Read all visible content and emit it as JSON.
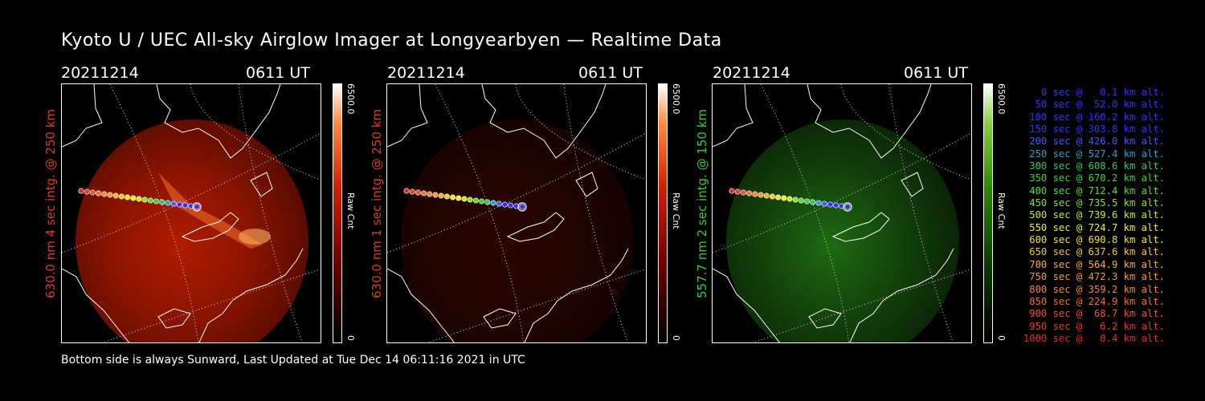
{
  "title": "Kyoto U / UEC All-sky Airglow Imager at Longyearbyen — Realtime Data",
  "footer": "Bottom side is always Sunward, Last Updated at Tue Dec 14 06:11:16 2021 in UTC",
  "panels": [
    {
      "date": "20211214",
      "time": "0611 UT",
      "ylabel": "630.0 nm 4 sec intg. @ 250 km",
      "label_color": "#e03a1e",
      "cbar_max": "6500.0",
      "cbar_min": "0",
      "cbar_unit": "Raw Cnt",
      "colormap": "red",
      "brightness": "high"
    },
    {
      "date": "20211214",
      "time": "0611 UT",
      "ylabel": "630.0 nm 1 sec intg. @ 250 km",
      "label_color": "#e03a1e",
      "cbar_max": "6500.0",
      "cbar_min": "0",
      "cbar_unit": "Raw Cnt",
      "colormap": "red",
      "brightness": "low"
    },
    {
      "date": "20211214",
      "time": "0611 UT",
      "ylabel": "557.7 nm 2 sec intg. @ 150 km",
      "label_color": "#33cc33",
      "cbar_max": "6500.0",
      "cbar_min": "0",
      "cbar_unit": "Raw Cnt",
      "colormap": "green",
      "brightness": "medium"
    }
  ],
  "legend": [
    {
      "text": "0 sec @   0.1 km alt.",
      "color": "#3a2cff"
    },
    {
      "text": "50 sec @  52.0 km alt.",
      "color": "#3a2cff"
    },
    {
      "text": "100 sec @ 160.2 km alt.",
      "color": "#3a2cff"
    },
    {
      "text": "150 sec @ 303.8 km alt.",
      "color": "#3a2cff"
    },
    {
      "text": "200 sec @ 426.0 km alt.",
      "color": "#3a5cff"
    },
    {
      "text": "250 sec @ 527.4 km alt.",
      "color": "#2aa0c8"
    },
    {
      "text": "300 sec @ 608.6 km alt.",
      "color": "#2ec86a"
    },
    {
      "text": "350 sec @ 670.2 km alt.",
      "color": "#3cd23c"
    },
    {
      "text": "400 sec @ 712.4 km alt.",
      "color": "#55dd2a"
    },
    {
      "text": "450 sec @ 735.5 km alt.",
      "color": "#88e32a"
    },
    {
      "text": "500 sec @ 739.6 km alt.",
      "color": "#c4e82a"
    },
    {
      "text": "550 sec @ 724.7 km alt.",
      "color": "#eef02a"
    },
    {
      "text": "600 sec @ 690.8 km alt.",
      "color": "#f5e02a"
    },
    {
      "text": "650 sec @ 637.6 km alt.",
      "color": "#f5c82a"
    },
    {
      "text": "700 sec @ 564.9 km alt.",
      "color": "#f5b02a"
    },
    {
      "text": "750 sec @ 472.3 km alt.",
      "color": "#f59a2a"
    },
    {
      "text": "800 sec @ 359.2 km alt.",
      "color": "#f5882a"
    },
    {
      "text": "850 sec @ 224.9 km alt.",
      "color": "#f56e2a"
    },
    {
      "text": "900 sec @  68.7 km alt.",
      "color": "#f0502a"
    },
    {
      "text": "950 sec @   6.2 km alt.",
      "color": "#e83a2a"
    },
    {
      "text": "1000 sec @   0.4 km alt.",
      "color": "#e02a2a"
    }
  ]
}
